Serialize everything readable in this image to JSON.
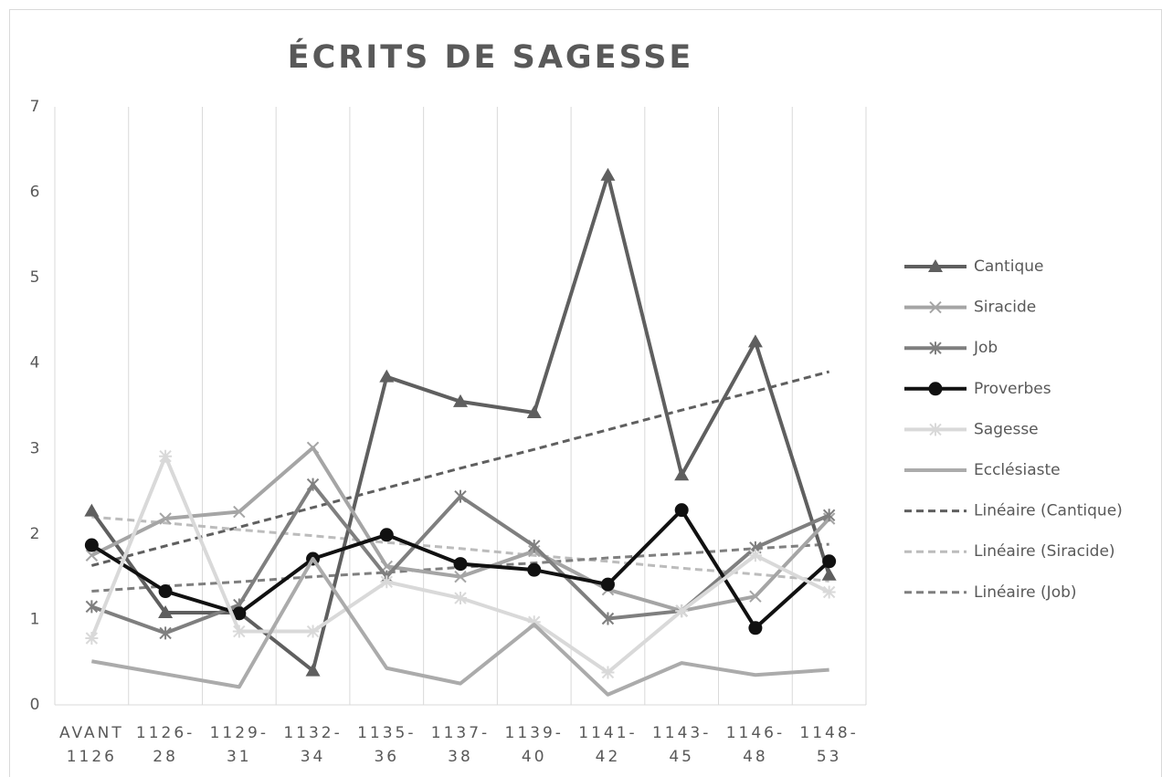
{
  "chart_data": {
    "type": "line",
    "title": "ÉCRITS DE SAGESSE",
    "categories": [
      "AVANT 1126",
      "1126-28",
      "1129-31",
      "1132-34",
      "1135-36",
      "1137-38",
      "1139-40",
      "1141-42",
      "1143-45",
      "1146-48",
      "1148-53"
    ],
    "ylim": [
      0,
      7
    ],
    "yticks": [
      0,
      1,
      2,
      3,
      4,
      5,
      6,
      7
    ],
    "grid": "x",
    "legend": "right",
    "series": [
      {
        "name": "Cantique",
        "color": "#5f5f5f",
        "marker": "triangle",
        "values": [
          2.27,
          1.08,
          1.08,
          0.4,
          3.84,
          3.55,
          3.42,
          6.2,
          2.69,
          4.25,
          1.52
        ]
      },
      {
        "name": "Siracide",
        "color": "#a5a5a5",
        "marker": "x",
        "values": [
          1.75,
          2.18,
          2.26,
          3.01,
          1.62,
          1.5,
          1.8,
          1.35,
          1.1,
          1.27,
          2.18
        ]
      },
      {
        "name": "Job",
        "color": "#7f7f7f",
        "marker": "asterisk",
        "values": [
          1.15,
          0.84,
          1.17,
          2.58,
          1.5,
          2.44,
          1.86,
          1.01,
          1.1,
          1.84,
          2.22
        ]
      },
      {
        "name": "Proverbes",
        "color": "#111111",
        "marker": "circle",
        "values": [
          1.87,
          1.33,
          1.07,
          1.71,
          1.99,
          1.65,
          1.58,
          1.41,
          2.28,
          0.9,
          1.68
        ]
      },
      {
        "name": "Sagesse",
        "color": "#d9d9d9",
        "marker": "star",
        "values": [
          0.78,
          2.91,
          0.86,
          0.86,
          1.44,
          1.25,
          0.97,
          0.38,
          1.1,
          1.75,
          1.32
        ]
      },
      {
        "name": "Ecclésiaste",
        "color": "#ababab",
        "marker": "none",
        "values": [
          0.51,
          0.36,
          0.21,
          1.71,
          0.43,
          0.25,
          0.94,
          0.12,
          0.49,
          0.35,
          0.41
        ]
      },
      {
        "name": "Linéaire (Cantique)",
        "color": "#5f5f5f",
        "marker": "none",
        "dashed": true,
        "values": [
          1.63,
          1.86,
          2.08,
          2.31,
          2.54,
          2.77,
          2.99,
          3.22,
          3.45,
          3.67,
          3.9
        ]
      },
      {
        "name": "Linéaire (Siracide)",
        "color": "#bcbcbc",
        "marker": "none",
        "dashed": true,
        "values": [
          2.2,
          2.13,
          2.05,
          1.98,
          1.9,
          1.83,
          1.75,
          1.68,
          1.6,
          1.53,
          1.45
        ]
      },
      {
        "name": "Linéaire (Job)",
        "color": "#7f7f7f",
        "marker": "none",
        "dashed": true,
        "values": [
          1.33,
          1.39,
          1.44,
          1.5,
          1.55,
          1.61,
          1.66,
          1.72,
          1.77,
          1.83,
          1.88
        ]
      }
    ]
  }
}
